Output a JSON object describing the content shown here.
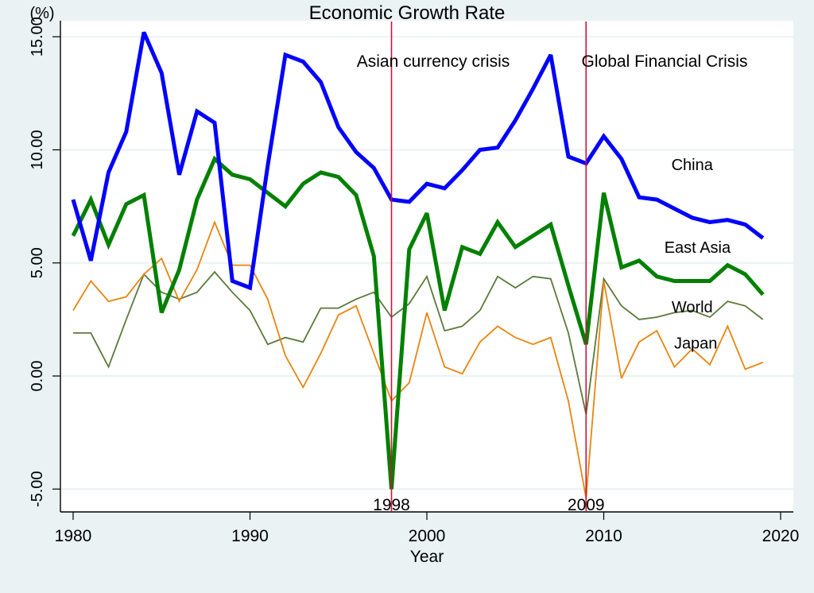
{
  "chart_data": {
    "type": "line",
    "title": "Economic Growth Rate",
    "xlabel": "Year",
    "ylabel": "(%)",
    "xlim": [
      1979.3,
      2020.7
    ],
    "ylim": [
      -6.0,
      15.75
    ],
    "xticks": [
      1980,
      1990,
      2000,
      2010,
      2020
    ],
    "yticks": [
      -5,
      0,
      5,
      10,
      15
    ],
    "ytick_labels": [
      "-5.00",
      "0.00",
      "5.00",
      "10.00",
      "15.00"
    ],
    "grid": true,
    "x": [
      1980,
      1981,
      1982,
      1983,
      1984,
      1985,
      1986,
      1987,
      1988,
      1989,
      1990,
      1991,
      1992,
      1993,
      1994,
      1995,
      1996,
      1997,
      1998,
      1999,
      2000,
      2001,
      2002,
      2003,
      2004,
      2005,
      2006,
      2007,
      2008,
      2009,
      2010,
      2011,
      2012,
      2013,
      2014,
      2015,
      2016,
      2017,
      2018,
      2019
    ],
    "series": [
      {
        "name": "China",
        "color": "#0000ff",
        "values": [
          7.8,
          5.1,
          9.0,
          10.8,
          15.2,
          13.4,
          8.9,
          11.7,
          11.2,
          4.2,
          3.9,
          9.3,
          14.2,
          13.9,
          13.0,
          11.0,
          9.9,
          9.2,
          7.8,
          7.7,
          8.5,
          8.3,
          9.1,
          10.0,
          10.1,
          11.3,
          12.7,
          14.2,
          9.7,
          9.4,
          10.6,
          9.6,
          7.9,
          7.8,
          7.4,
          7.0,
          6.8,
          6.9,
          6.7,
          6.1
        ],
        "label_text": "China"
      },
      {
        "name": "East Asia",
        "color": "#008000",
        "values": [
          6.2,
          7.8,
          5.8,
          7.6,
          8.0,
          2.8,
          4.7,
          7.8,
          9.6,
          8.9,
          8.7,
          8.1,
          7.5,
          8.5,
          9.0,
          8.8,
          8.0,
          5.3,
          -5.0,
          5.6,
          7.2,
          2.9,
          5.7,
          5.4,
          6.8,
          5.7,
          6.2,
          6.7,
          4.0,
          1.4,
          8.1,
          4.8,
          5.1,
          4.4,
          4.2,
          4.2,
          4.2,
          4.9,
          4.5,
          3.6
        ],
        "label_text": "East Asia"
      },
      {
        "name": "World",
        "color": "#5a7a3a",
        "values": [
          1.9,
          1.9,
          0.4,
          2.5,
          4.5,
          3.7,
          3.4,
          3.7,
          4.6,
          3.7,
          2.9,
          1.4,
          1.7,
          1.5,
          3.0,
          3.0,
          3.4,
          3.7,
          2.6,
          3.2,
          4.4,
          2.0,
          2.2,
          2.9,
          4.4,
          3.9,
          4.4,
          4.3,
          1.9,
          -1.7,
          4.3,
          3.1,
          2.5,
          2.6,
          2.8,
          2.9,
          2.6,
          3.3,
          3.1,
          2.5
        ],
        "label_text": "World"
      },
      {
        "name": "Japan",
        "color": "#e8850f",
        "values": [
          2.9,
          4.2,
          3.3,
          3.5,
          4.5,
          5.2,
          3.3,
          4.7,
          6.8,
          4.9,
          4.9,
          3.4,
          0.9,
          -0.5,
          1.0,
          2.7,
          3.1,
          1.0,
          -1.1,
          -0.3,
          2.8,
          0.4,
          0.1,
          1.5,
          2.2,
          1.7,
          1.4,
          1.7,
          -1.1,
          -5.4,
          4.2,
          -0.1,
          1.5,
          2.0,
          0.4,
          1.2,
          0.5,
          2.2,
          0.3,
          0.6
        ],
        "label_text": "Japan"
      }
    ],
    "annotations": [
      {
        "type": "vline",
        "x": 1998,
        "color": "#c8143c",
        "top_label": "Asian currency crisis",
        "bottom_label": "1998"
      },
      {
        "type": "vline",
        "x": 2009,
        "color": "#c8143c",
        "top_label": "Global Financial Crisis",
        "bottom_label": "2009"
      }
    ],
    "series_labels": [
      {
        "text": "China",
        "x": 2015.0,
        "y": 9.35
      },
      {
        "text": "East Asia",
        "x": 2015.3,
        "y": 5.7
      },
      {
        "text": "World",
        "x": 2015.0,
        "y": 3.05
      },
      {
        "text": "Japan",
        "x": 2015.2,
        "y": 1.45
      }
    ],
    "colors": {
      "background": "#eaf2f3",
      "plot_background": "#ffffff",
      "grid": "#eaf2f3",
      "axis": "#000000"
    }
  }
}
